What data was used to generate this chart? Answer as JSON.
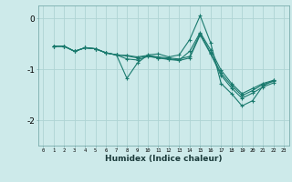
{
  "bg_color": "#cdeaea",
  "grid_color": "#afd4d4",
  "line_color": "#1a7a6e",
  "marker": "+",
  "xlabel": "Humidex (Indice chaleur)",
  "x_ticks": [
    0,
    1,
    2,
    3,
    4,
    5,
    6,
    7,
    8,
    9,
    10,
    11,
    12,
    13,
    14,
    15,
    16,
    17,
    18,
    19,
    20,
    21,
    22,
    23
  ],
  "ylim": [
    -2.5,
    0.25
  ],
  "y_ticks": [
    0,
    -1,
    -2
  ],
  "lines": [
    [
      1,
      -0.55,
      -0.55,
      -0.65,
      -0.58,
      -0.6,
      -0.68,
      -0.72,
      -1.18,
      -0.88,
      -0.72,
      -0.7,
      -0.76,
      -0.72,
      -0.42,
      0.05,
      -0.48,
      -1.28,
      -1.48,
      -1.72,
      -1.62,
      -1.33,
      -1.22,
      23
    ],
    [
      1,
      -0.55,
      -0.55,
      -0.65,
      -0.58,
      -0.6,
      -0.68,
      -0.72,
      -0.8,
      -0.82,
      -0.75,
      -0.78,
      -0.8,
      -0.82,
      -0.65,
      -0.28,
      -0.62,
      -1.02,
      -1.28,
      -1.48,
      -1.38,
      -1.28,
      -1.22,
      23
    ],
    [
      1,
      -0.55,
      -0.55,
      -0.65,
      -0.58,
      -0.6,
      -0.68,
      -0.72,
      -0.73,
      -0.76,
      -0.73,
      -0.76,
      -0.78,
      -0.8,
      -0.75,
      -0.3,
      -0.68,
      -1.08,
      -1.32,
      -1.52,
      -1.42,
      -1.3,
      -1.24,
      23
    ],
    [
      1,
      -0.55,
      -0.55,
      -0.65,
      -0.58,
      -0.6,
      -0.68,
      -0.72,
      -0.74,
      -0.78,
      -0.74,
      -0.78,
      -0.81,
      -0.83,
      -0.78,
      -0.33,
      -0.7,
      -1.12,
      -1.37,
      -1.57,
      -1.47,
      -1.35,
      -1.27,
      23
    ]
  ],
  "line_starts": [
    1,
    1,
    1,
    1
  ],
  "line_ends": [
    22,
    22,
    22,
    22
  ]
}
